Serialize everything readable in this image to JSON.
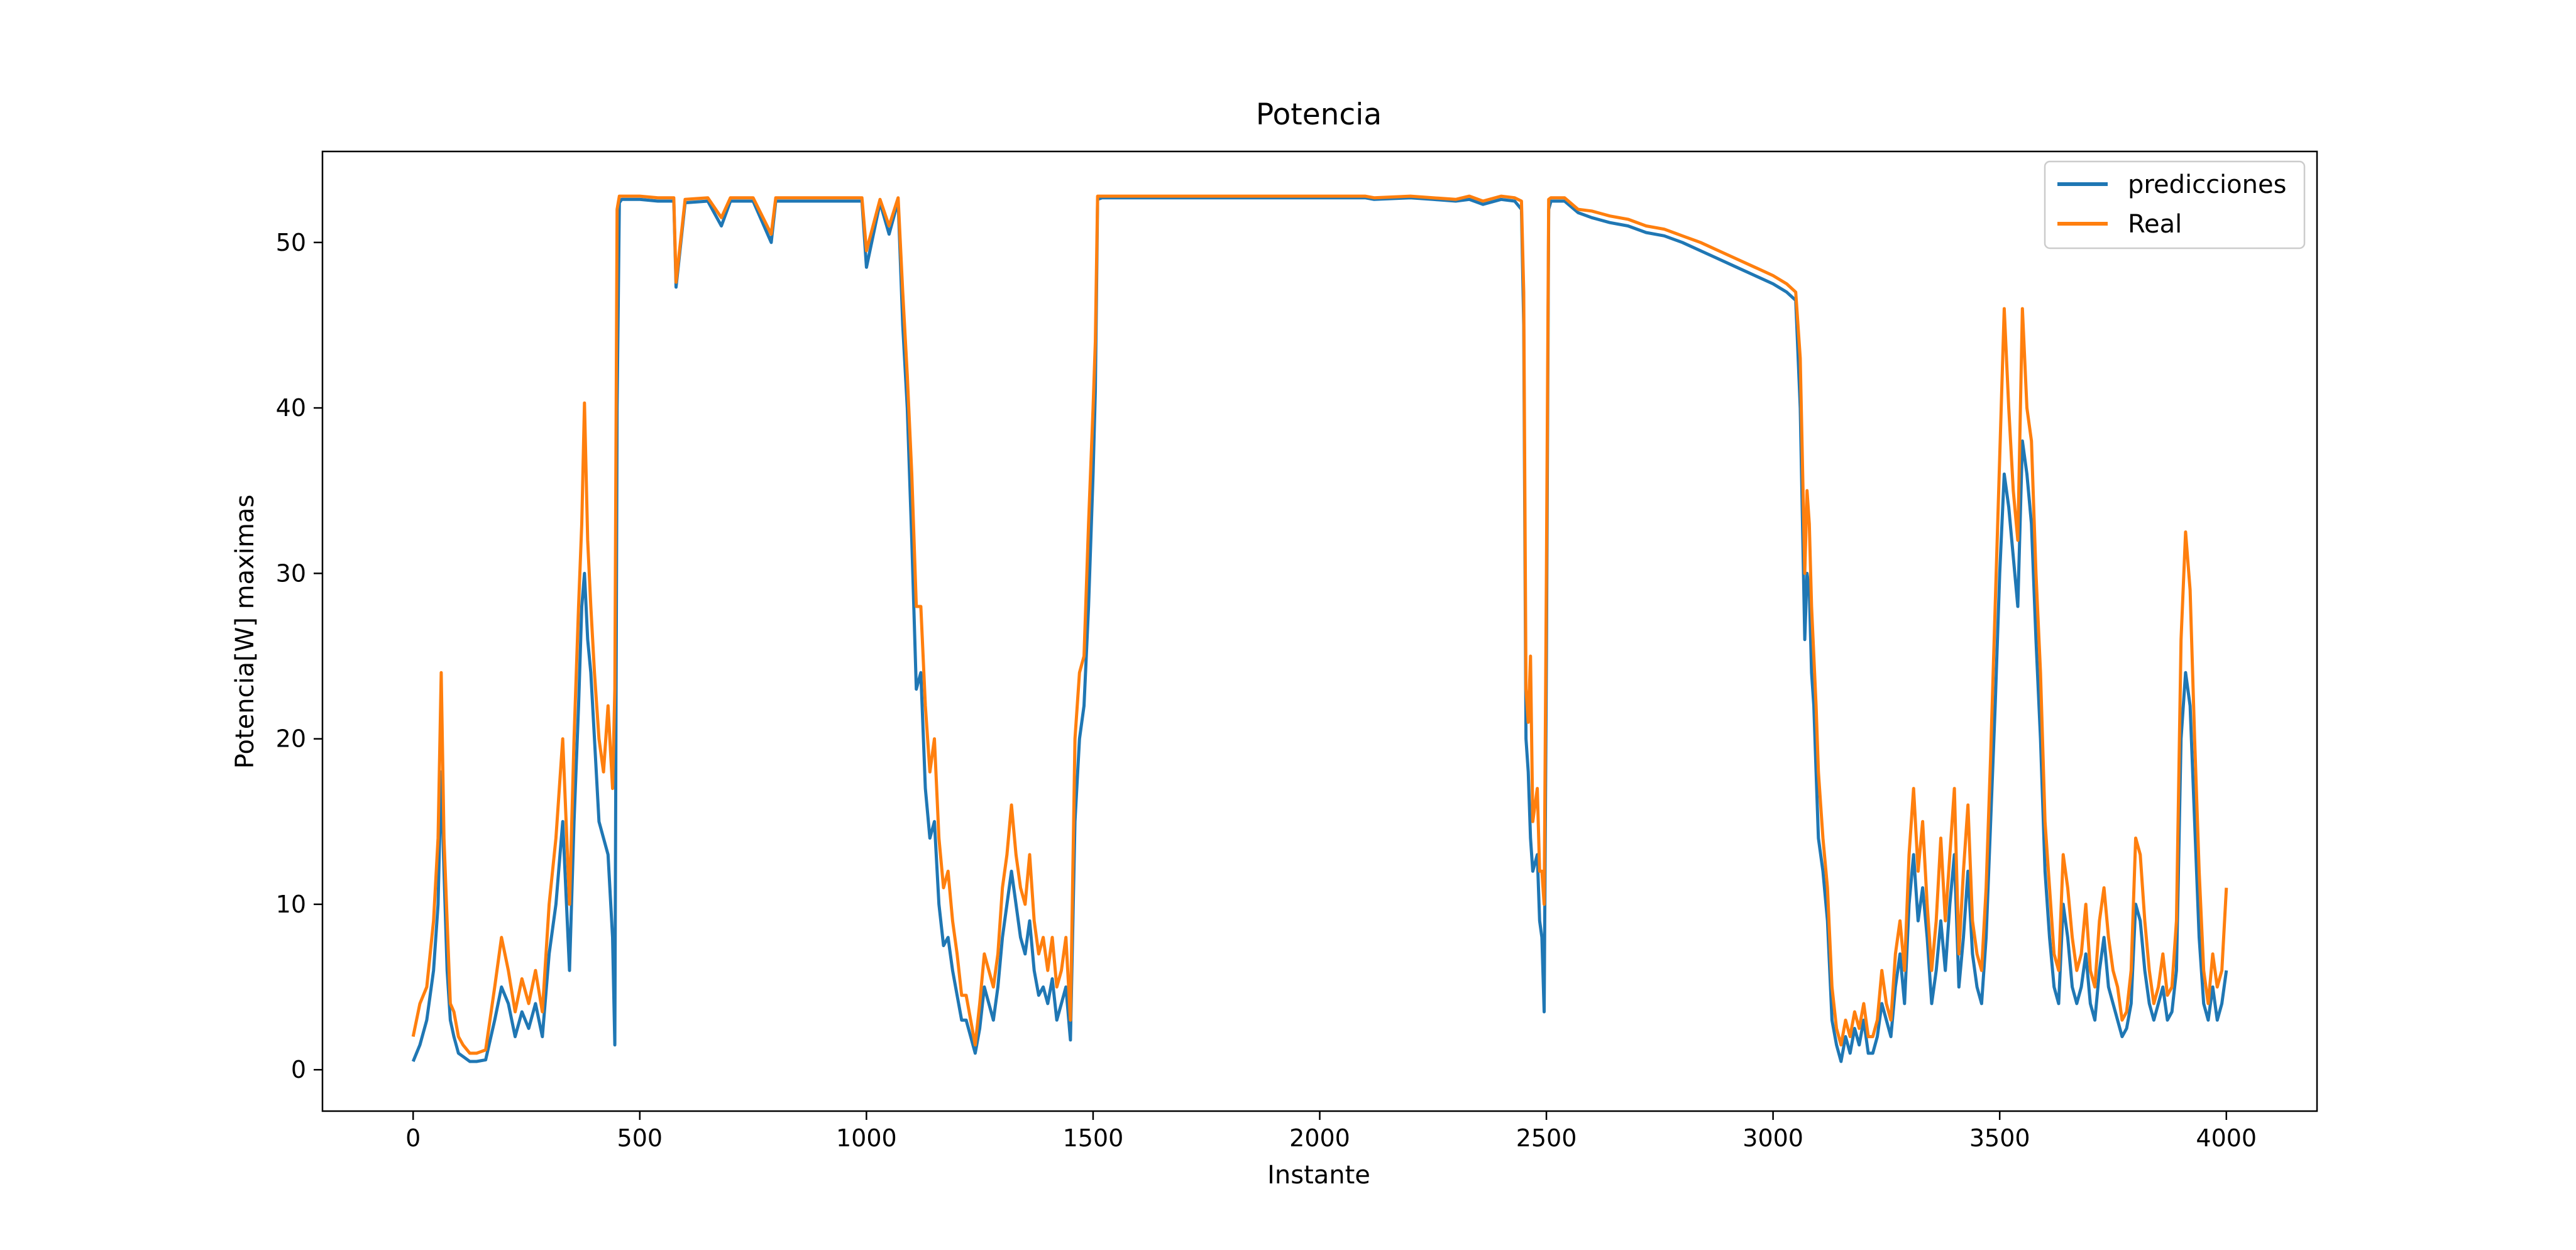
{
  "chart_data": {
    "type": "line",
    "title": "Potencia",
    "xlabel": "Instante",
    "ylabel": "Potencia[W] maximas",
    "xlim": [
      -200,
      4200
    ],
    "ylim": [
      -2.5,
      55.5
    ],
    "xticks": [
      0,
      500,
      1000,
      1500,
      2000,
      2500,
      3000,
      3500,
      4000
    ],
    "yticks": [
      0,
      10,
      20,
      30,
      40,
      50
    ],
    "grid": false,
    "legend_position": "top-right",
    "series": [
      {
        "name": "predicciones",
        "color": "#1f77b4",
        "x": [
          0,
          15,
          30,
          45,
          55,
          62,
          68,
          75,
          82,
          90,
          100,
          110,
          125,
          140,
          160,
          180,
          195,
          210,
          225,
          240,
          255,
          270,
          285,
          300,
          315,
          330,
          345,
          355,
          365,
          372,
          378,
          385,
          392,
          400,
          410,
          420,
          430,
          440,
          445,
          450,
          455,
          460,
          500,
          540,
          575,
          580,
          600,
          650,
          680,
          700,
          720,
          750,
          790,
          800,
          830,
          850,
          900,
          950,
          990,
          1000,
          1030,
          1050,
          1070,
          1080,
          1090,
          1100,
          1110,
          1120,
          1130,
          1140,
          1150,
          1160,
          1170,
          1180,
          1190,
          1200,
          1210,
          1220,
          1230,
          1240,
          1250,
          1260,
          1270,
          1280,
          1290,
          1300,
          1310,
          1320,
          1330,
          1340,
          1350,
          1360,
          1370,
          1380,
          1390,
          1400,
          1410,
          1420,
          1430,
          1440,
          1450,
          1460,
          1470,
          1480,
          1490,
          1500,
          1505,
          1510,
          1520,
          1600,
          1700,
          1800,
          1900,
          2000,
          2100,
          2120,
          2200,
          2250,
          2300,
          2330,
          2360,
          2400,
          2430,
          2445,
          2450,
          2455,
          2460,
          2465,
          2470,
          2480,
          2485,
          2490,
          2495,
          2500,
          2505,
          2510,
          2540,
          2570,
          2600,
          2640,
          2680,
          2720,
          2760,
          2800,
          2840,
          2880,
          2920,
          2960,
          3000,
          3030,
          3050,
          3060,
          3070,
          3075,
          3080,
          3085,
          3090,
          3095,
          3100,
          3110,
          3120,
          3130,
          3140,
          3150,
          3160,
          3170,
          3180,
          3190,
          3200,
          3210,
          3220,
          3230,
          3240,
          3250,
          3260,
          3270,
          3280,
          3290,
          3300,
          3310,
          3320,
          3330,
          3340,
          3350,
          3360,
          3370,
          3380,
          3390,
          3400,
          3410,
          3420,
          3430,
          3440,
          3450,
          3460,
          3470,
          3480,
          3490,
          3500,
          3510,
          3520,
          3530,
          3540,
          3550,
          3560,
          3570,
          3580,
          3590,
          3600,
          3610,
          3620,
          3630,
          3640,
          3650,
          3660,
          3670,
          3680,
          3690,
          3700,
          3710,
          3720,
          3730,
          3740,
          3750,
          3760,
          3770,
          3780,
          3790,
          3800,
          3810,
          3820,
          3830,
          3840,
          3850,
          3860,
          3870,
          3880,
          3890,
          3900,
          3910,
          3920,
          3930,
          3940,
          3950,
          3960,
          3970,
          3980,
          3990,
          4000
        ],
        "y": [
          0.5,
          1.5,
          3.0,
          6.0,
          10.0,
          18.0,
          12.0,
          6.0,
          3.0,
          2.0,
          1.0,
          0.8,
          0.5,
          0.5,
          0.6,
          3.0,
          5.0,
          4.0,
          2.0,
          3.5,
          2.5,
          4.0,
          2.0,
          7.0,
          10.0,
          15.0,
          6.0,
          15.0,
          22.0,
          28.0,
          30.0,
          26.0,
          24.0,
          20.0,
          15.0,
          14.0,
          13.0,
          8.0,
          1.5,
          40.0,
          52.4,
          52.6,
          52.6,
          52.5,
          52.5,
          47.3,
          52.4,
          52.5,
          51.0,
          52.5,
          52.5,
          52.5,
          50.0,
          52.5,
          52.5,
          52.5,
          52.5,
          52.5,
          52.5,
          48.5,
          52.4,
          50.5,
          52.5,
          45.0,
          40.0,
          32.0,
          23.0,
          24.0,
          17.0,
          14.0,
          15.0,
          10.0,
          7.5,
          8.0,
          6.0,
          4.5,
          3.0,
          3.0,
          2.0,
          1.0,
          2.5,
          5.0,
          4.0,
          3.0,
          5.0,
          8.0,
          10.0,
          12.0,
          10.0,
          8.0,
          7.0,
          9.0,
          6.0,
          4.5,
          5.0,
          4.0,
          5.5,
          3.0,
          4.0,
          5.0,
          1.8,
          15.0,
          20.0,
          22.0,
          28.0,
          36.0,
          41.0,
          52.6,
          52.7,
          52.7,
          52.7,
          52.7,
          52.7,
          52.7,
          52.7,
          52.6,
          52.7,
          52.6,
          52.5,
          52.6,
          52.3,
          52.6,
          52.5,
          52.0,
          45.0,
          20.0,
          18.0,
          14.0,
          12.0,
          13.0,
          9.0,
          8.0,
          3.5,
          25.0,
          52.0,
          52.5,
          52.5,
          51.8,
          51.5,
          51.2,
          51.0,
          50.6,
          50.4,
          50.0,
          49.5,
          49.0,
          48.5,
          48.0,
          47.5,
          47.0,
          46.5,
          40.0,
          26.0,
          30.0,
          29.0,
          24.0,
          22.0,
          18.0,
          14.0,
          12.0,
          9.0,
          3.0,
          1.5,
          0.5,
          2.0,
          1.0,
          2.5,
          1.5,
          3.0,
          1.0,
          1.0,
          2.0,
          4.0,
          3.0,
          2.0,
          5.0,
          7.0,
          4.0,
          10.0,
          13.0,
          9.0,
          11.0,
          8.0,
          4.0,
          6.0,
          9.0,
          6.0,
          10.0,
          13.0,
          5.0,
          8.0,
          12.0,
          7.0,
          5.0,
          4.0,
          8.0,
          15.0,
          22.0,
          30.0,
          36.0,
          34.0,
          31.0,
          28.0,
          38.0,
          36.0,
          33.0,
          26.0,
          20.0,
          12.0,
          8.0,
          5.0,
          4.0,
          10.0,
          8.0,
          5.0,
          4.0,
          5.0,
          7.0,
          4.0,
          3.0,
          6.0,
          8.0,
          5.0,
          4.0,
          3.0,
          2.0,
          2.5,
          4.0,
          10.0,
          9.0,
          6.0,
          4.0,
          3.0,
          4.0,
          5.0,
          3.0,
          3.5,
          6.0,
          20.0,
          24.0,
          22.0,
          15.0,
          8.0,
          4.0,
          3.0,
          5.0,
          3.0,
          4.0,
          6.0
        ]
      },
      {
        "name": "Real",
        "color": "#ff7f0e",
        "x": [
          0,
          15,
          30,
          45,
          55,
          62,
          68,
          75,
          82,
          90,
          100,
          110,
          125,
          140,
          160,
          180,
          195,
          210,
          225,
          240,
          255,
          270,
          285,
          300,
          315,
          330,
          345,
          355,
          365,
          372,
          378,
          385,
          392,
          400,
          410,
          420,
          430,
          440,
          445,
          450,
          455,
          460,
          500,
          540,
          575,
          580,
          600,
          650,
          680,
          700,
          720,
          750,
          790,
          800,
          830,
          850,
          900,
          950,
          990,
          1000,
          1030,
          1050,
          1070,
          1080,
          1090,
          1100,
          1110,
          1120,
          1130,
          1140,
          1150,
          1160,
          1170,
          1180,
          1190,
          1200,
          1210,
          1220,
          1230,
          1240,
          1250,
          1260,
          1270,
          1280,
          1290,
          1300,
          1310,
          1320,
          1330,
          1340,
          1350,
          1360,
          1370,
          1380,
          1390,
          1400,
          1410,
          1420,
          1430,
          1440,
          1450,
          1460,
          1470,
          1480,
          1490,
          1500,
          1505,
          1510,
          1520,
          1600,
          1700,
          1800,
          1900,
          2000,
          2100,
          2120,
          2200,
          2250,
          2300,
          2330,
          2360,
          2400,
          2430,
          2445,
          2450,
          2455,
          2460,
          2465,
          2470,
          2480,
          2485,
          2490,
          2495,
          2500,
          2505,
          2510,
          2540,
          2570,
          2600,
          2640,
          2680,
          2720,
          2760,
          2800,
          2840,
          2880,
          2920,
          2960,
          3000,
          3030,
          3050,
          3060,
          3070,
          3075,
          3080,
          3085,
          3090,
          3095,
          3100,
          3110,
          3120,
          3130,
          3140,
          3150,
          3160,
          3170,
          3180,
          3190,
          3200,
          3210,
          3220,
          3230,
          3240,
          3250,
          3260,
          3270,
          3280,
          3290,
          3300,
          3310,
          3320,
          3330,
          3340,
          3350,
          3360,
          3370,
          3380,
          3390,
          3400,
          3410,
          3420,
          3430,
          3440,
          3450,
          3460,
          3470,
          3480,
          3490,
          3500,
          3510,
          3520,
          3530,
          3540,
          3550,
          3560,
          3570,
          3580,
          3590,
          3600,
          3610,
          3620,
          3630,
          3640,
          3650,
          3660,
          3670,
          3680,
          3690,
          3700,
          3710,
          3720,
          3730,
          3740,
          3750,
          3760,
          3770,
          3780,
          3790,
          3800,
          3810,
          3820,
          3830,
          3840,
          3850,
          3860,
          3870,
          3880,
          3890,
          3900,
          3910,
          3920,
          3930,
          3940,
          3950,
          3960,
          3970,
          3980,
          3990,
          4000
        ],
        "y": [
          2.0,
          4.0,
          5.0,
          9.0,
          14.0,
          24.0,
          14.0,
          9.0,
          4.0,
          3.5,
          2.0,
          1.5,
          1.0,
          1.0,
          1.2,
          5.0,
          8.0,
          6.0,
          3.5,
          5.5,
          4.0,
          6.0,
          3.5,
          10.0,
          14.0,
          20.0,
          10.0,
          20.0,
          28.0,
          33.0,
          40.3,
          32.0,
          28.0,
          24.0,
          20.0,
          18.0,
          22.0,
          17.0,
          23.0,
          52.0,
          52.8,
          52.8,
          52.8,
          52.7,
          52.7,
          47.6,
          52.6,
          52.7,
          51.5,
          52.7,
          52.7,
          52.7,
          50.5,
          52.7,
          52.7,
          52.7,
          52.7,
          52.7,
          52.7,
          49.5,
          52.6,
          51.0,
          52.7,
          47.0,
          42.0,
          36.0,
          28.0,
          28.0,
          22.0,
          18.0,
          20.0,
          14.0,
          11.0,
          12.0,
          9.0,
          7.0,
          4.5,
          4.5,
          3.0,
          1.5,
          4.0,
          7.0,
          6.0,
          5.0,
          7.0,
          11.0,
          13.0,
          16.0,
          13.0,
          11.0,
          10.0,
          13.0,
          9.0,
          7.0,
          8.0,
          6.0,
          8.0,
          5.0,
          6.0,
          8.0,
          3.0,
          20.0,
          24.0,
          25.0,
          33.0,
          40.0,
          44.0,
          52.8,
          52.8,
          52.8,
          52.8,
          52.8,
          52.8,
          52.8,
          52.8,
          52.7,
          52.8,
          52.7,
          52.6,
          52.8,
          52.5,
          52.8,
          52.7,
          52.5,
          47.0,
          23.0,
          21.0,
          25.0,
          15.0,
          17.0,
          12.0,
          12.0,
          10.0,
          30.0,
          52.6,
          52.7,
          52.7,
          52.0,
          51.9,
          51.6,
          51.4,
          51.0,
          50.8,
          50.4,
          50.0,
          49.5,
          49.0,
          48.5,
          48.0,
          47.5,
          47.0,
          43.0,
          30.0,
          35.0,
          33.0,
          28.0,
          25.0,
          22.0,
          18.0,
          14.0,
          11.0,
          5.0,
          2.5,
          1.5,
          3.0,
          2.0,
          3.5,
          2.5,
          4.0,
          2.0,
          2.0,
          3.0,
          6.0,
          4.0,
          3.0,
          7.0,
          9.0,
          6.0,
          13.0,
          17.0,
          12.0,
          15.0,
          10.0,
          6.0,
          9.0,
          14.0,
          9.0,
          13.0,
          17.0,
          7.0,
          12.0,
          16.0,
          9.0,
          7.0,
          6.0,
          11.0,
          19.0,
          28.0,
          37.0,
          46.0,
          40.0,
          35.0,
          32.0,
          46.0,
          40.0,
          38.0,
          30.0,
          24.0,
          15.0,
          11.0,
          7.0,
          6.0,
          13.0,
          11.0,
          8.0,
          6.0,
          7.0,
          10.0,
          6.0,
          5.0,
          9.0,
          11.0,
          8.0,
          6.0,
          5.0,
          3.0,
          3.5,
          6.0,
          14.0,
          13.0,
          9.0,
          6.0,
          4.0,
          5.0,
          7.0,
          4.5,
          5.0,
          9.0,
          26.0,
          32.5,
          29.0,
          20.0,
          12.0,
          6.0,
          4.0,
          7.0,
          5.0,
          6.0,
          11.0
        ]
      }
    ]
  }
}
